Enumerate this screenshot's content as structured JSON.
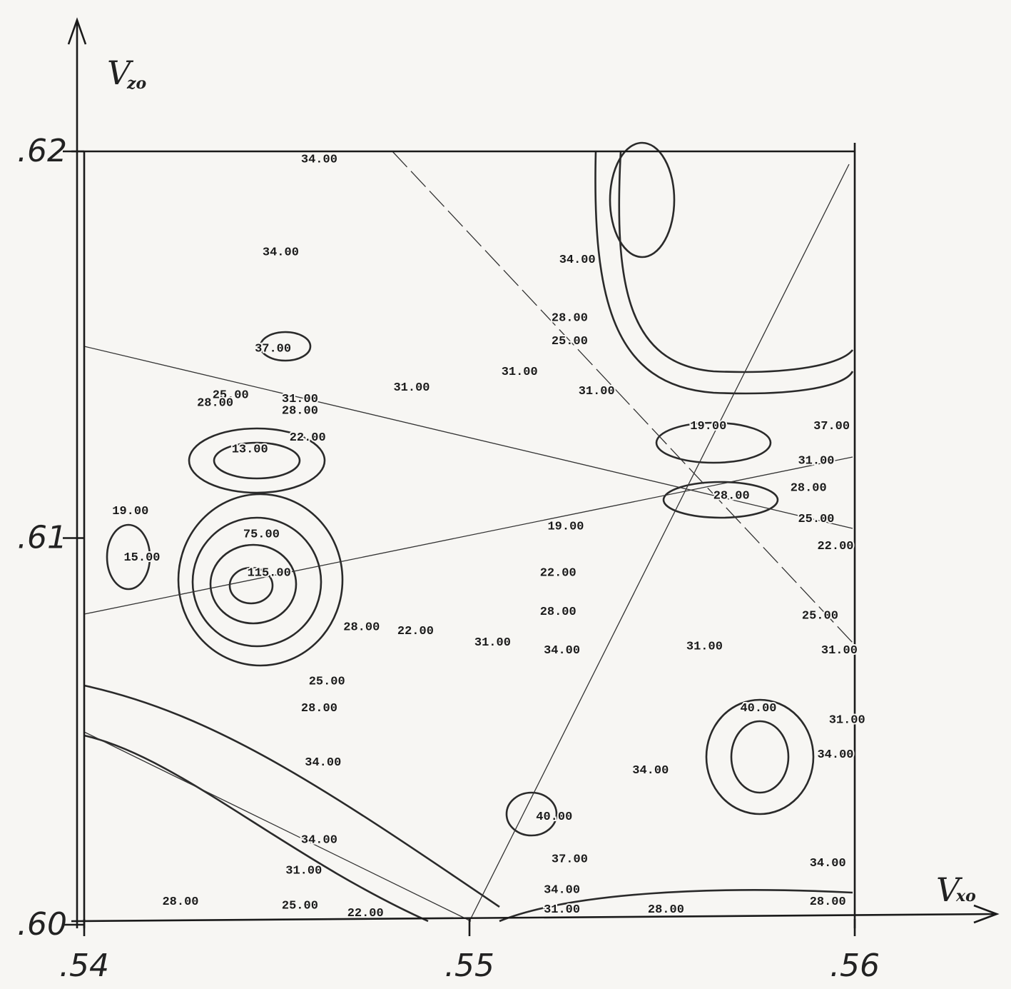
{
  "chart_data": {
    "type": "contour",
    "xlabel": {
      "main": "V",
      "sub": "xo"
    },
    "ylabel": {
      "main": "V",
      "sub": "zo"
    },
    "xlim": [
      0.54,
      0.56
    ],
    "ylim": [
      0.6,
      0.62
    ],
    "xticks": [
      {
        "value": 0.54,
        "label": ".54"
      },
      {
        "value": 0.55,
        "label": ".55"
      },
      {
        "value": 0.56,
        "label": ".56"
      }
    ],
    "yticks": [
      {
        "value": 0.6,
        "label": ".60"
      },
      {
        "value": 0.61,
        "label": ".61"
      },
      {
        "value": 0.62,
        "label": ".62"
      }
    ],
    "color": "#1a1a1a",
    "x": [
      0.5461,
      0.5451,
      0.5449,
      0.5438,
      0.5434,
      0.5456,
      0.5456,
      0.5485,
      0.5458,
      0.5443,
      0.5412,
      0.5415,
      0.5446,
      0.5448,
      0.5472,
      0.5486,
      0.5463,
      0.5461,
      0.5462,
      0.5461,
      0.5457,
      0.5425,
      0.5456,
      0.5473,
      0.5506,
      0.5524,
      0.5523,
      0.5523,
      0.5525,
      0.5513,
      0.5533,
      0.5526,
      0.5526,
      0.5528,
      0.5562,
      0.5568,
      0.5561,
      0.5575,
      0.5547,
      0.5522,
      0.5526,
      0.5524,
      0.5524,
      0.5551,
      0.5593,
      0.5593,
      0.5594,
      0.559,
      0.5588,
      0.559,
      0.5595,
      0.5591,
      0.5596,
      0.5598,
      0.5595
    ],
    "y": [
      0.6198,
      0.6174,
      0.6149,
      0.6137,
      0.6135,
      0.6136,
      0.6133,
      0.6139,
      0.6126,
      0.6123,
      0.6107,
      0.6095,
      0.6101,
      0.6091,
      0.6077,
      0.6076,
      0.6063,
      0.6056,
      0.6042,
      0.6022,
      0.6014,
      0.6006,
      0.6005,
      0.6003,
      0.6073,
      0.6071,
      0.6081,
      0.6091,
      0.6103,
      0.6143,
      0.6138,
      0.6157,
      0.6151,
      0.6172,
      0.6129,
      0.6111,
      0.6072,
      0.6056,
      0.604,
      0.6028,
      0.6017,
      0.6009,
      0.6004,
      0.6004,
      0.6016,
      0.6006,
      0.6129,
      0.612,
      0.6113,
      0.6105,
      0.6098,
      0.608,
      0.6071,
      0.6053,
      0.6044
    ],
    "values": [
      34,
      34,
      37,
      25,
      28,
      31,
      28,
      31,
      22,
      13,
      19,
      15,
      75,
      115,
      28,
      22,
      25,
      28,
      34,
      34,
      31,
      28,
      25,
      22,
      31,
      34,
      28,
      22,
      19,
      31,
      31,
      28,
      25,
      34,
      19,
      28,
      31,
      40,
      34,
      40,
      37,
      34,
      31,
      28,
      34,
      28,
      37,
      31,
      28,
      25,
      22,
      25,
      31,
      31,
      34
    ],
    "value_labels": [
      "34.00",
      "34.00",
      "37.00",
      "25.00",
      "28.00",
      "31.00",
      "28.00",
      "31.00",
      "22.00",
      "13.00",
      "19.00",
      "15.00",
      "75.00",
      "115.00",
      "28.00",
      "22.00",
      "25.00",
      "28.00",
      "34.00",
      "34.00",
      "31.00",
      "28.00",
      "25.00",
      "22.00",
      "31.00",
      "34.00",
      "28.00",
      "22.00",
      "19.00",
      "31.00",
      "31.00",
      "28.00",
      "25.00",
      "34.00",
      "19.00",
      "28.00",
      "31.00",
      "40.00",
      "34.00",
      "40.00",
      "37.00",
      "34.00",
      "31.00",
      "28.00",
      "34.00",
      "28.00",
      "37.00",
      "31.00",
      "28.00",
      "25.00",
      "22.00",
      "25.00",
      "31.00",
      "31.00",
      "34.00"
    ]
  }
}
